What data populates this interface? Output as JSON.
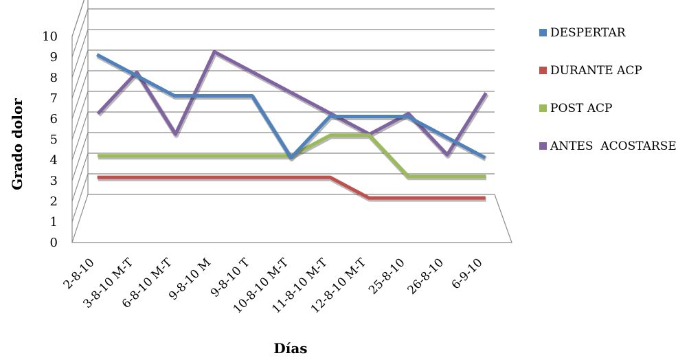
{
  "chart_data": {
    "type": "line",
    "title": "",
    "xlabel": "Días",
    "ylabel": "Grado dolor",
    "ylim": [
      0,
      10
    ],
    "yticks": [
      "0",
      "1",
      "2",
      "3",
      "4",
      "5",
      "6",
      "7",
      "8",
      "9",
      "10"
    ],
    "grid": true,
    "legend_position": "right",
    "categories": [
      "2-8-10",
      "3-8-10 M-T",
      "6-8-10 M-T",
      "9-8-10 M",
      "9-8-10 T",
      "10-8-10 M-T",
      "11-8-10 M-T",
      "12-8-10 M-T",
      "25-8-10",
      "26-8-10",
      "6-9-10"
    ],
    "series": [
      {
        "name": "DESPERTAR",
        "color": "#4f81bd",
        "values": [
          9,
          8,
          7,
          7,
          7,
          4,
          6,
          6,
          6,
          5,
          4
        ]
      },
      {
        "name": "DURANTE ACP",
        "color": "#c0504d",
        "values": [
          3,
          3,
          3,
          3,
          3,
          3,
          3,
          2,
          2,
          2,
          2
        ]
      },
      {
        "name": "POST ACP",
        "color": "#9bbb59",
        "values": [
          4,
          4,
          4,
          4,
          4,
          4,
          5,
          5,
          3,
          3,
          3
        ]
      },
      {
        "name": "ANTES  ACOSTARSE",
        "color": "#8064a2",
        "values": [
          6,
          8,
          5,
          9,
          8,
          7,
          6,
          5,
          6,
          4,
          7
        ]
      }
    ]
  }
}
